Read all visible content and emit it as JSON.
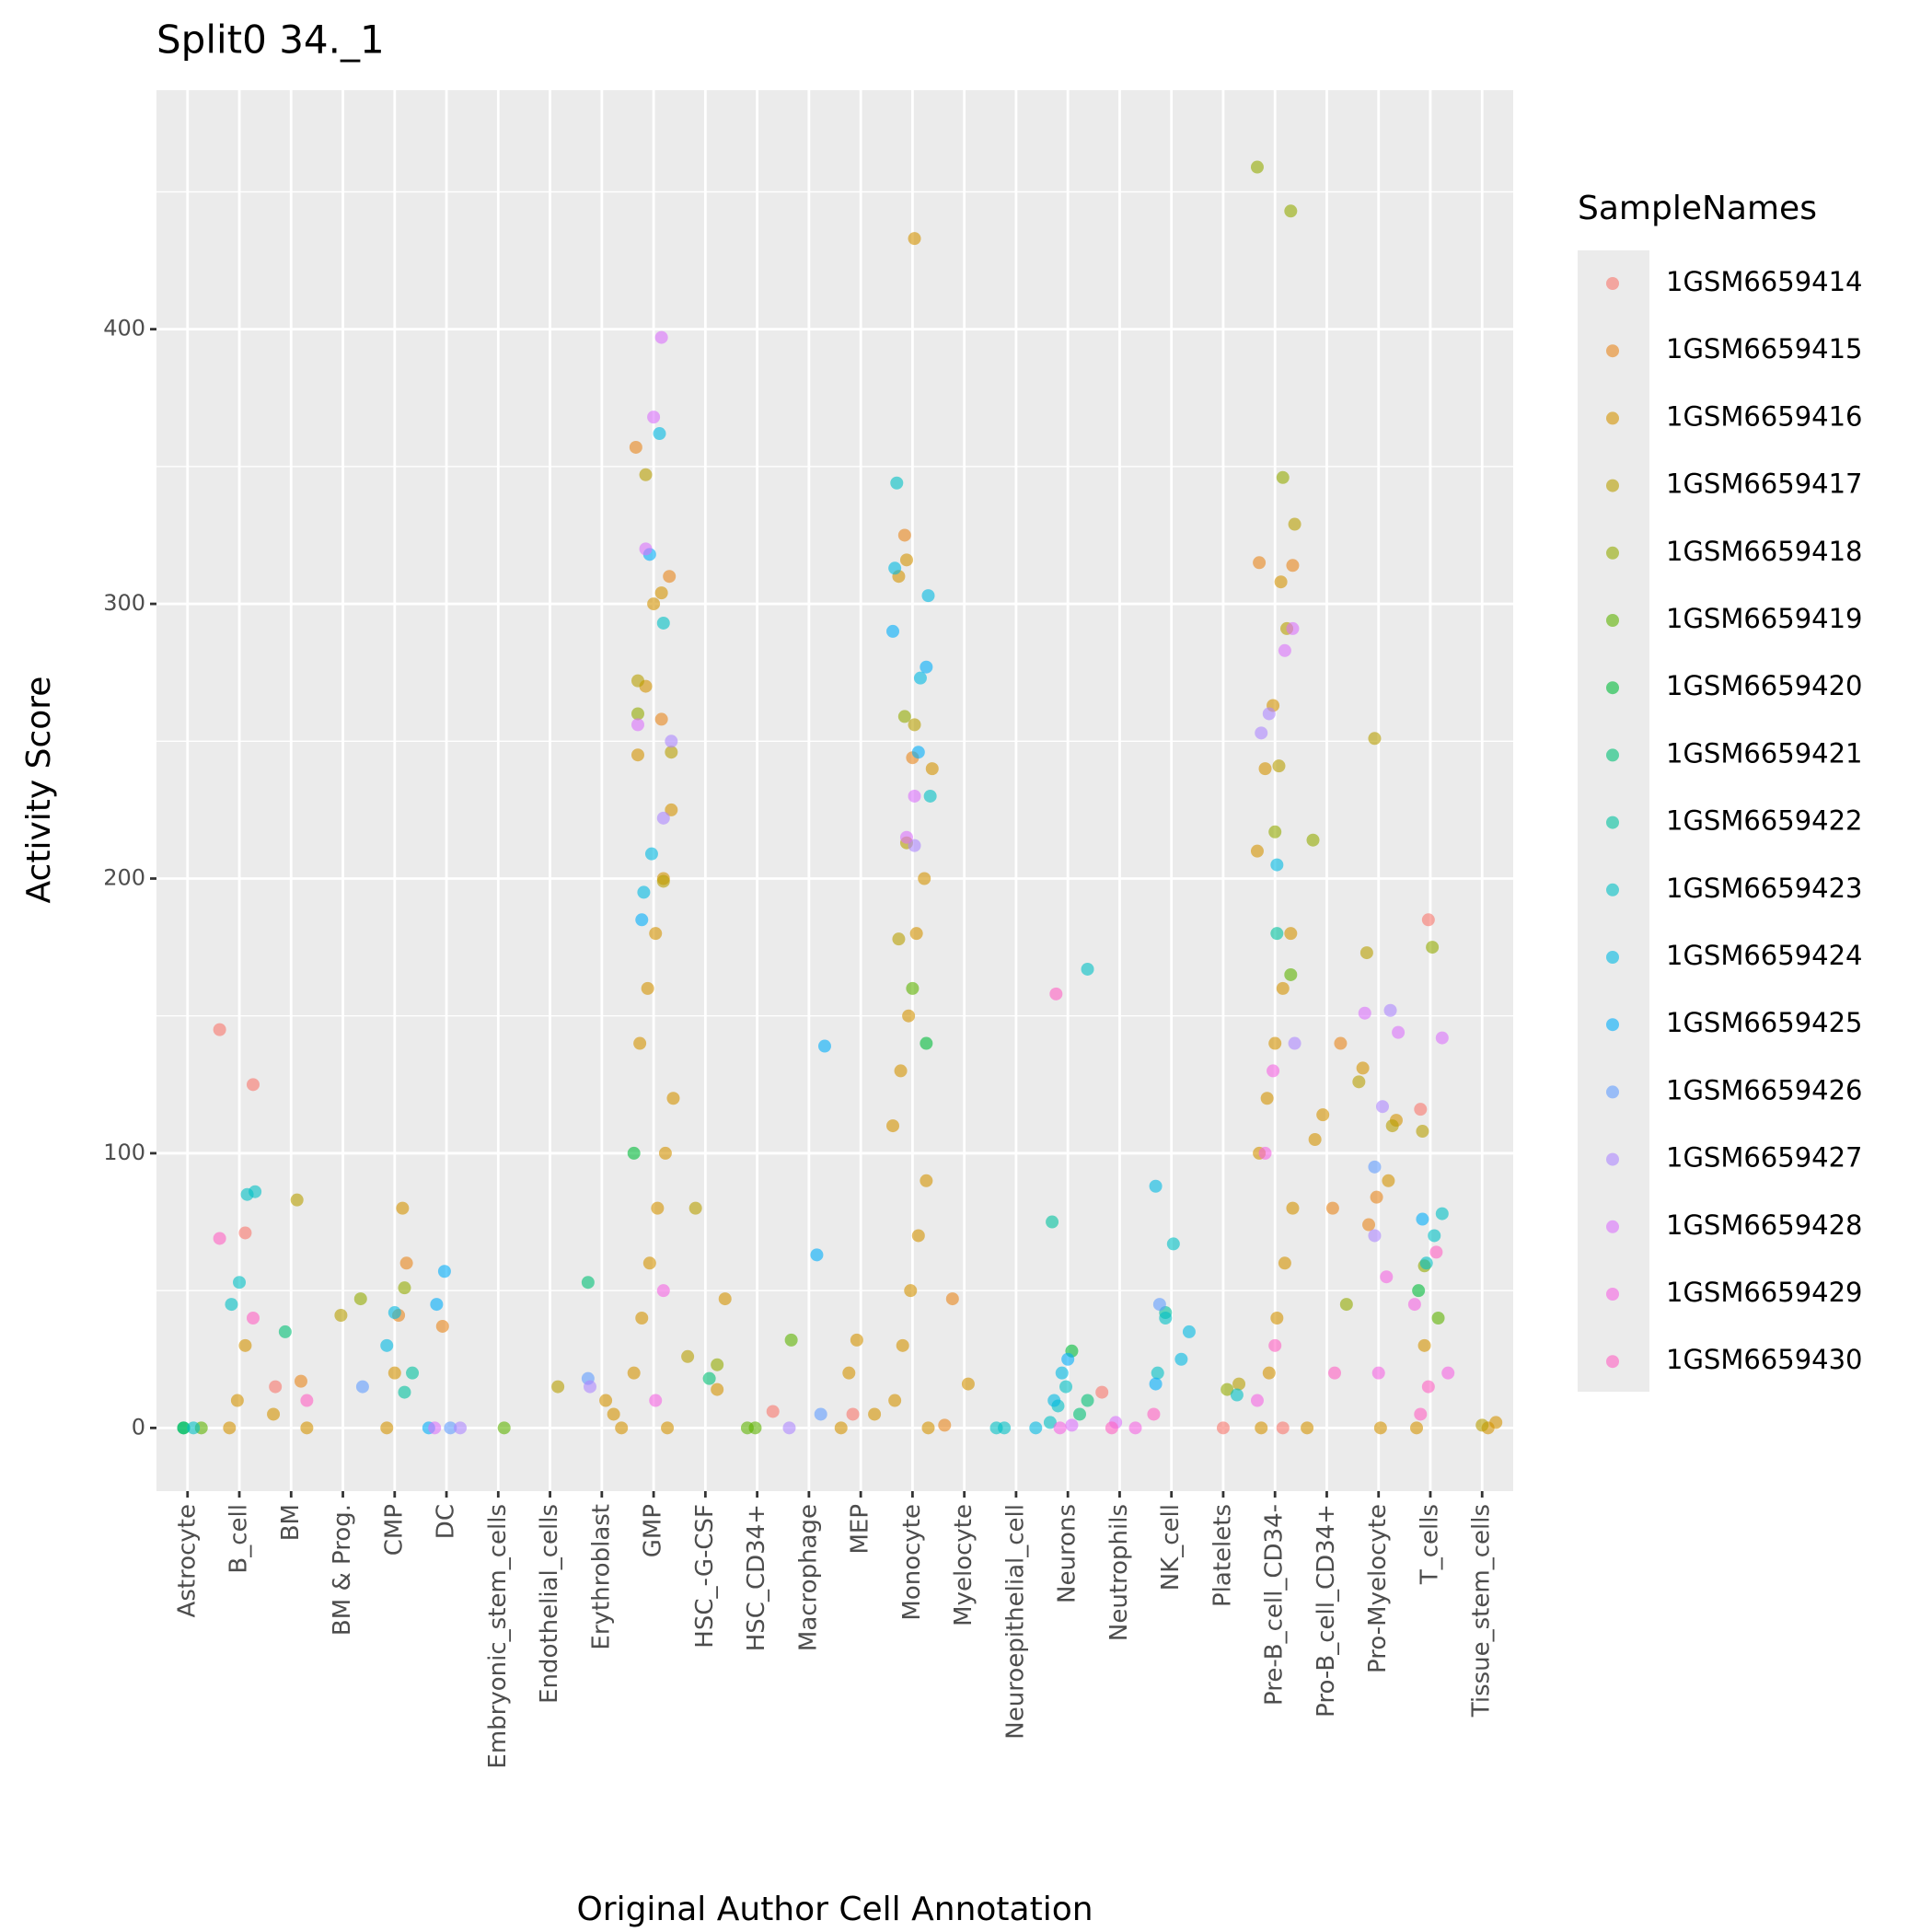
{
  "chart_data": {
    "type": "scatter",
    "title": "Split0 34._1",
    "x_label": "Original Author Cell Annotation",
    "y_label": "Activity Score",
    "legend_title": "SampleNames",
    "legend_position": "right",
    "grid": true,
    "ylim": [
      -23,
      487
    ],
    "yticks": [
      0,
      100,
      200,
      300,
      400
    ],
    "categories": [
      "Astrocyte",
      "B_cell",
      "BM",
      "BM & Prog.",
      "CMP",
      "DC",
      "Embryonic_stem_cells",
      "Endothelial_cells",
      "Erythroblast",
      "GMP",
      "HSC_-G-CSF",
      "HSC_CD34+",
      "Macrophage",
      "MEP",
      "Monocyte",
      "Myelocyte",
      "Neuroepithelial_cell",
      "Neurons",
      "Neutrophils",
      "NK_cell",
      "Platelets",
      "Pre-B_cell_CD34-",
      "Pro-B_cell_CD34+",
      "Pro-Myelocyte",
      "T_cells",
      "Tissue_stem_cells"
    ],
    "series": [
      {
        "name": "1GSM6659414",
        "color": "#F8766D",
        "x": [
          "B_cell",
          "B_cell",
          "B_cell",
          "T_cells",
          "T_cells",
          "Neutrophils",
          "HSC_CD34+",
          "Pre-B_cell_CD34-",
          "Platelets",
          "MEP",
          "BM"
        ],
        "values": [
          145,
          125,
          71,
          185,
          116,
          13,
          6,
          0,
          0,
          5,
          15
        ]
      },
      {
        "name": "1GSM6659415",
        "color": "#E7861B",
        "x": [
          "CMP",
          "CMP",
          "DC",
          "Myelocyte",
          "Myelocyte",
          "Pro-B_cell_CD34+",
          "Pro-B_cell_CD34+",
          "Pro-Myelocyte",
          "Pro-Myelocyte",
          "GMP",
          "GMP",
          "GMP",
          "Monocyte",
          "Monocyte",
          "Pre-B_cell_CD34-",
          "Pre-B_cell_CD34-",
          "BM"
        ],
        "values": [
          60,
          41,
          37,
          47,
          1,
          140,
          80,
          84,
          74,
          357,
          310,
          258,
          244,
          325,
          315,
          314,
          17
        ]
      },
      {
        "name": "1GSM6659416",
        "color": "#D39200",
        "x": [
          "Monocyte",
          "Monocyte",
          "Monocyte",
          "Monocyte",
          "Monocyte",
          "Monocyte",
          "Monocyte",
          "Monocyte",
          "Monocyte",
          "Monocyte",
          "Monocyte",
          "Monocyte",
          "Monocyte",
          "Monocyte",
          "Monocyte",
          "GMP",
          "GMP",
          "GMP",
          "GMP",
          "GMP",
          "GMP",
          "GMP",
          "GMP",
          "GMP",
          "GMP",
          "GMP",
          "GMP",
          "GMP",
          "GMP",
          "GMP",
          "GMP",
          "Pre-B_cell_CD34-",
          "Pre-B_cell_CD34-",
          "Pre-B_cell_CD34-",
          "Pre-B_cell_CD34-",
          "Pre-B_cell_CD34-",
          "Pre-B_cell_CD34-",
          "Pre-B_cell_CD34-",
          "Pre-B_cell_CD34-",
          "Pre-B_cell_CD34-",
          "Pre-B_cell_CD34-",
          "Pre-B_cell_CD34-",
          "Pre-B_cell_CD34-",
          "Pre-B_cell_CD34-",
          "Pre-B_cell_CD34-",
          "Erythroblast",
          "Erythroblast",
          "Erythroblast",
          "MEP",
          "MEP",
          "MEP",
          "MEP",
          "B_cell",
          "B_cell",
          "B_cell",
          "BM",
          "BM",
          "CMP",
          "CMP",
          "CMP",
          "Pro-Myelocyte",
          "Pro-Myelocyte",
          "Pro-Myelocyte",
          "Pro-Myelocyte",
          "T_cells",
          "T_cells",
          "HSC_-G-CSF",
          "HSC_-G-CSF",
          "Myelocyte",
          "Pro-B_cell_CD34+",
          "Pro-B_cell_CD34+",
          "Pro-B_cell_CD34+",
          "Tissue_stem_cells",
          "Tissue_stem_cells"
        ],
        "values": [
          433,
          316,
          310,
          240,
          200,
          180,
          150,
          130,
          110,
          90,
          70,
          50,
          30,
          10,
          0,
          304,
          300,
          270,
          245,
          225,
          200,
          180,
          160,
          140,
          120,
          100,
          80,
          60,
          40,
          20,
          0,
          308,
          263,
          240,
          210,
          180,
          160,
          140,
          120,
          100,
          80,
          60,
          40,
          20,
          0,
          0,
          5,
          10,
          32,
          20,
          0,
          5,
          30,
          10,
          0,
          5,
          0,
          80,
          20,
          0,
          131,
          112,
          90,
          0,
          30,
          0,
          47,
          14,
          16,
          114,
          105,
          0,
          2,
          0
        ]
      },
      {
        "name": "1GSM6659417",
        "color": "#B79F00",
        "x": [
          "GMP",
          "GMP",
          "GMP",
          "GMP",
          "Monocyte",
          "Monocyte",
          "Monocyte",
          "Pre-B_cell_CD34-",
          "Pre-B_cell_CD34-",
          "Pre-B_cell_CD34-",
          "Pro-Myelocyte",
          "Pro-Myelocyte",
          "Pro-Myelocyte",
          "Pro-Myelocyte",
          "BM",
          "BM & Prog.",
          "HSC_-G-CSF",
          "HSC_-G-CSF",
          "Platelets",
          "Endothelial_cells",
          "Tissue_stem_cells",
          "T_cells"
        ],
        "values": [
          347,
          272,
          246,
          199,
          256,
          213,
          178,
          329,
          291,
          241,
          251,
          173,
          126,
          110,
          83,
          41,
          80,
          26,
          16,
          15,
          1,
          108
        ]
      },
      {
        "name": "1GSM6659418",
        "color": "#93AA00",
        "x": [
          "Pre-B_cell_CD34-",
          "Pre-B_cell_CD34-",
          "Pre-B_cell_CD34-",
          "Pre-B_cell_CD34-",
          "Monocyte",
          "GMP",
          "BM & Prog.",
          "CMP",
          "T_cells",
          "T_cells",
          "Pro-B_cell_CD34+",
          "Pro-B_cell_CD34+",
          "HSC_-G-CSF",
          "Platelets"
        ],
        "values": [
          459,
          443,
          346,
          217,
          259,
          260,
          47,
          51,
          175,
          59,
          214,
          45,
          23,
          14
        ]
      },
      {
        "name": "1GSM6659419",
        "color": "#5EB300",
        "x": [
          "Astrocyte",
          "Embryonic_stem_cells",
          "HSC_CD34+",
          "HSC_CD34+",
          "Macrophage",
          "Pre-B_cell_CD34-",
          "T_cells",
          "Monocyte"
        ],
        "values": [
          0,
          0,
          0,
          0,
          32,
          165,
          40,
          160
        ]
      },
      {
        "name": "1GSM6659420",
        "color": "#00BA38",
        "x": [
          "Neurons",
          "Astrocyte",
          "T_cells",
          "GMP",
          "Monocyte"
        ],
        "values": [
          28,
          0,
          50,
          100,
          140
        ]
      },
      {
        "name": "1GSM6659421",
        "color": "#00BF74",
        "x": [
          "BM",
          "Erythroblast",
          "Neurons",
          "Neurons",
          "HSC_-G-CSF",
          "Astrocyte"
        ],
        "values": [
          35,
          53,
          10,
          5,
          18,
          0
        ]
      },
      {
        "name": "1GSM6659422",
        "color": "#00C19F",
        "x": [
          "Neurons",
          "CMP",
          "CMP",
          "Pre-B_cell_CD34-",
          "NK_cell"
        ],
        "values": [
          75,
          20,
          13,
          180,
          42
        ]
      },
      {
        "name": "1GSM6659423",
        "color": "#00BFC4",
        "x": [
          "B_cell",
          "B_cell",
          "B_cell",
          "B_cell",
          "Monocyte",
          "Monocyte",
          "GMP",
          "NK_cell",
          "NK_cell",
          "NK_cell",
          "Neurons",
          "T_cells",
          "T_cells",
          "T_cells",
          "Neuroepithelial_cell",
          "Neuroepithelial_cell",
          "Platelets",
          "Astrocyte",
          "Neurons",
          "Neurons",
          "Neurons"
        ],
        "values": [
          86,
          85,
          53,
          45,
          344,
          230,
          293,
          67,
          40,
          20,
          167,
          78,
          70,
          60,
          0,
          0,
          12,
          0,
          15,
          8,
          2
        ]
      },
      {
        "name": "1GSM6659424",
        "color": "#00B9E3",
        "x": [
          "GMP",
          "GMP",
          "GMP",
          "Monocyte",
          "Monocyte",
          "Monocyte",
          "CMP",
          "CMP",
          "NK_cell",
          "NK_cell",
          "NK_cell",
          "Pre-B_cell_CD34-",
          "Neurons",
          "Neurons",
          "Neuroepithelial_cell"
        ],
        "values": [
          362,
          209,
          195,
          313,
          303,
          273,
          42,
          30,
          88,
          35,
          25,
          205,
          20,
          10,
          0
        ]
      },
      {
        "name": "1GSM6659425",
        "color": "#00ADFA",
        "x": [
          "GMP",
          "GMP",
          "Monocyte",
          "Monocyte",
          "Monocyte",
          "DC",
          "DC",
          "DC",
          "Macrophage",
          "Macrophage",
          "Neurons",
          "T_cells",
          "NK_cell"
        ],
        "values": [
          318,
          185,
          290,
          277,
          246,
          57,
          45,
          0,
          139,
          63,
          25,
          76,
          16
        ]
      },
      {
        "name": "1GSM6659426",
        "color": "#619CFF",
        "x": [
          "Erythroblast",
          "BM & Prog.",
          "Macrophage",
          "DC",
          "Pro-Myelocyte",
          "NK_cell"
        ],
        "values": [
          18,
          15,
          5,
          0,
          95,
          45
        ]
      },
      {
        "name": "1GSM6659427",
        "color": "#AE87FF",
        "x": [
          "GMP",
          "GMP",
          "Monocyte",
          "Pre-B_cell_CD34-",
          "Pre-B_cell_CD34-",
          "Pre-B_cell_CD34-",
          "Pro-Myelocyte",
          "Pro-Myelocyte",
          "Pro-Myelocyte",
          "Erythroblast",
          "Macrophage",
          "DC"
        ],
        "values": [
          250,
          222,
          212,
          260,
          253,
          140,
          152,
          117,
          70,
          15,
          0,
          0
        ]
      },
      {
        "name": "1GSM6659428",
        "color": "#DB72FB",
        "x": [
          "GMP",
          "GMP",
          "GMP",
          "GMP",
          "Pre-B_cell_CD34-",
          "Pre-B_cell_CD34-",
          "Monocyte",
          "Monocyte",
          "Pro-Myelocyte",
          "Pro-Myelocyte",
          "T_cells",
          "Neurons",
          "Neutrophils",
          "DC"
        ],
        "values": [
          397,
          368,
          320,
          256,
          291,
          283,
          230,
          215,
          151,
          144,
          142,
          1,
          2,
          0
        ]
      },
      {
        "name": "1GSM6659429",
        "color": "#F564E3",
        "x": [
          "Pre-B_cell_CD34-",
          "Pre-B_cell_CD34-",
          "Pre-B_cell_CD34-",
          "Neutrophils",
          "Pro-Myelocyte",
          "Pro-Myelocyte",
          "Neurons",
          "T_cells",
          "T_cells",
          "GMP",
          "GMP"
        ],
        "values": [
          130,
          100,
          10,
          0,
          55,
          20,
          0,
          45,
          20,
          50,
          10
        ]
      },
      {
        "name": "1GSM6659430",
        "color": "#FF61C3",
        "x": [
          "Neurons",
          "B_cell",
          "B_cell",
          "T_cells",
          "T_cells",
          "T_cells",
          "NK_cell",
          "BM",
          "Pro-B_cell_CD34+",
          "Pre-B_cell_CD34-",
          "Neutrophils"
        ],
        "values": [
          158,
          69,
          40,
          64,
          15,
          5,
          5,
          10,
          20,
          30,
          0
        ]
      }
    ]
  }
}
